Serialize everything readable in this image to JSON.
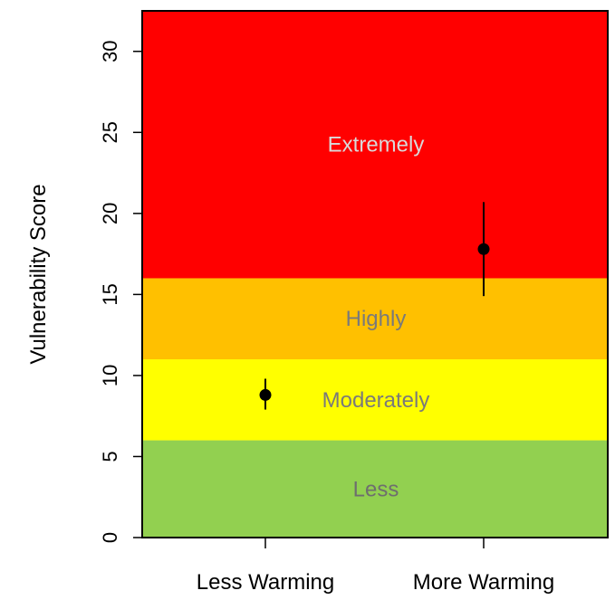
{
  "chart_data": {
    "type": "scatter",
    "title": "",
    "xlabel": "",
    "ylabel": "Vulnerability Score",
    "categories": [
      "Less Warming",
      "More Warming"
    ],
    "ylim": [
      0,
      32.5
    ],
    "yticks": [
      0,
      5,
      10,
      15,
      20,
      25,
      30
    ],
    "grid": false,
    "legend": "none",
    "bands": [
      {
        "label": "Less",
        "from": 0,
        "to": 6,
        "color": "#92d050",
        "label_color": "#6e6e6e"
      },
      {
        "label": "Moderately",
        "from": 6,
        "to": 11,
        "color": "#ffff00",
        "label_color": "#7a7a7a"
      },
      {
        "label": "Highly",
        "from": 11,
        "to": 16,
        "color": "#ffc000",
        "label_color": "#7a7a7a"
      },
      {
        "label": "Extremely",
        "from": 16,
        "to": 32.5,
        "color": "#ff0000",
        "label_color": "#d9d9d9"
      }
    ],
    "points": [
      {
        "category": "Less Warming",
        "value": 8.8,
        "lower": 7.9,
        "upper": 9.8
      },
      {
        "category": "More Warming",
        "value": 17.8,
        "lower": 14.9,
        "upper": 20.7
      }
    ],
    "point_color": "#000000"
  }
}
